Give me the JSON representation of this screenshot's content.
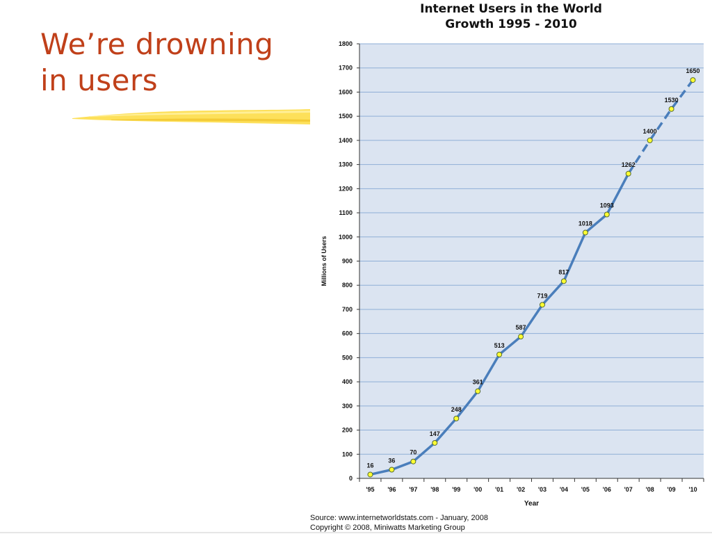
{
  "slide": {
    "title_line1": "We’re drowning",
    "title_line2": "in users"
  },
  "colors": {
    "title": "#c0401a",
    "plot_bg": "#dbe4f1",
    "grid": "#8eaed6",
    "line": "#4a7ebb",
    "marker_fill": "#ffff33",
    "highlighter": "#fde05a"
  },
  "chart_data": {
    "type": "line",
    "title": "Internet Users in the World",
    "subtitle": "Growth 1995 - 2010",
    "xlabel": "Year",
    "ylabel": "Millions of Users",
    "ylim": [
      0,
      1800
    ],
    "yticks": [
      0,
      100,
      200,
      300,
      400,
      500,
      600,
      700,
      800,
      900,
      1000,
      1100,
      1200,
      1300,
      1400,
      1500,
      1600,
      1700,
      1800
    ],
    "grid": true,
    "categories": [
      "'95",
      "'96",
      "'97",
      "'98",
      "'99",
      "'00",
      "'01",
      "'02",
      "'03",
      "'04",
      "'05",
      "'06",
      "'07",
      "'08",
      "'09",
      "'10"
    ],
    "series": [
      {
        "values": [
          16,
          36,
          70,
          147,
          248,
          361,
          513,
          587,
          719,
          817,
          1018,
          1093,
          1262,
          1400,
          1530,
          1650
        ],
        "dashed_from_index": 12
      }
    ]
  },
  "footer": {
    "source_line1": "Source: www.internetworldstats.com - January, 2008",
    "source_line2": "Copyright © 2008, Miniwatts Marketing Group"
  }
}
